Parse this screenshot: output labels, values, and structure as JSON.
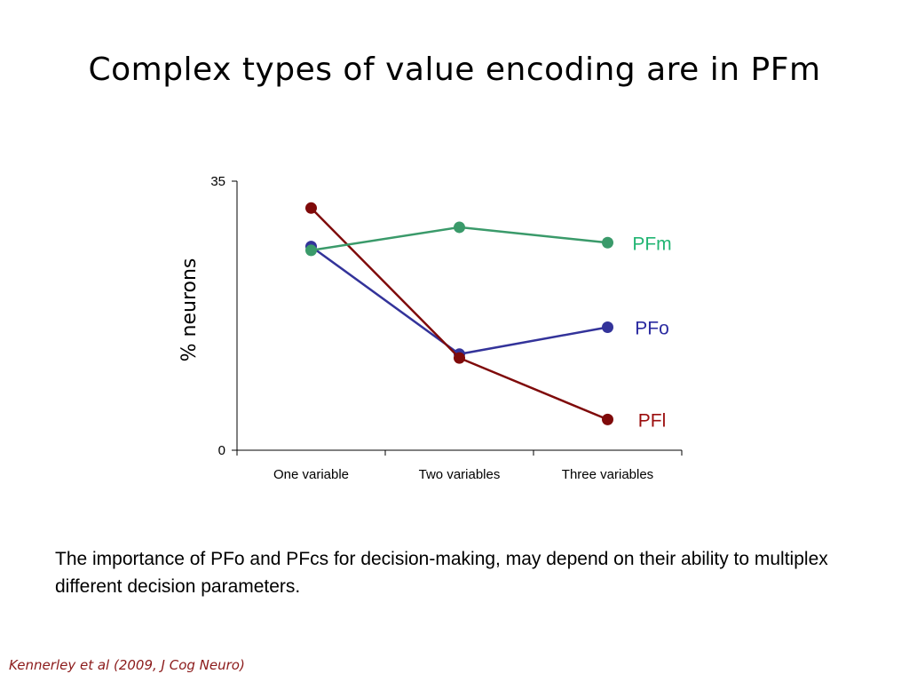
{
  "slide": {
    "title": "Complex types of value encoding are in PFm",
    "body_text": "The importance of PFo and PFcs for decision-making, may depend on their ability to multiplex different decision parameters.",
    "citation": "Kennerley et al (2009, J Cog Neuro)"
  },
  "colors": {
    "title": "#000000",
    "citation": "#8b1a1a",
    "axis": "#000000"
  },
  "chart_data": {
    "type": "line",
    "title": "",
    "xlabel": "",
    "ylabel": "% neurons",
    "categories": [
      "One variable",
      "Two variables",
      "Three variables"
    ],
    "ylim": [
      0,
      35
    ],
    "yticks": [
      0,
      35
    ],
    "ytick_labels": [
      "0",
      "35"
    ],
    "grid": false,
    "legend": "inline-right",
    "series": [
      {
        "name": "PFm",
        "color": "#3a9a6a",
        "label_color": "#22b573",
        "values": [
          26,
          29,
          27
        ]
      },
      {
        "name": "PFo",
        "color": "#33339a",
        "label_color": "#2a2aa0",
        "values": [
          26.5,
          12.5,
          16
        ]
      },
      {
        "name": "PFl",
        "color": "#7f0a0a",
        "label_color": "#9b0d0d",
        "values": [
          31.5,
          12,
          4
        ]
      }
    ]
  }
}
